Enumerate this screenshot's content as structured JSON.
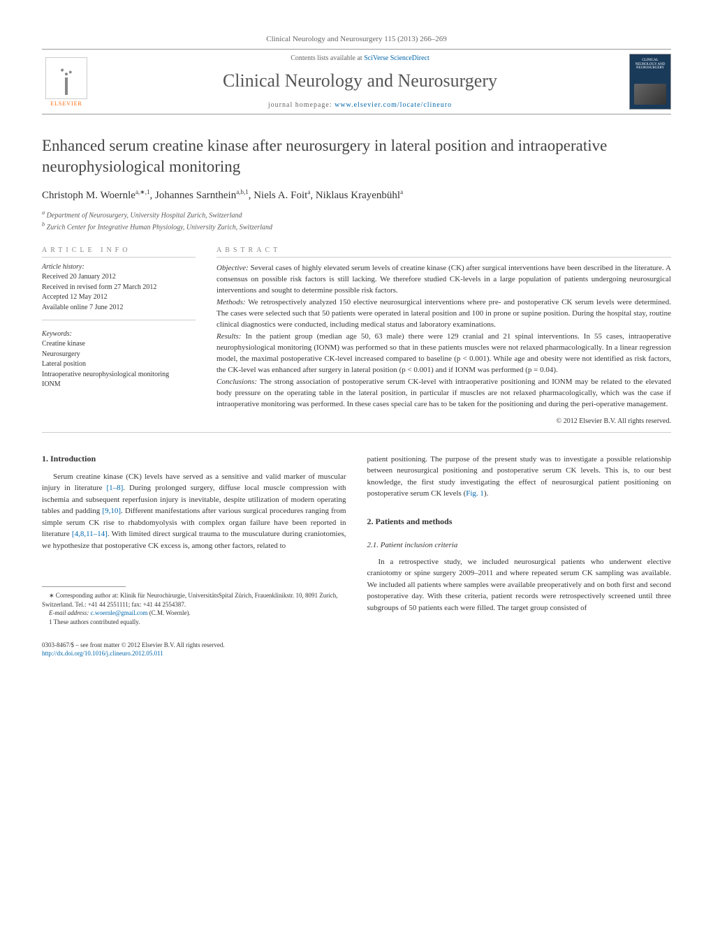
{
  "journal_header": "Clinical Neurology and Neurosurgery 115 (2013) 266–269",
  "contents_avail_prefix": "Contents lists available at ",
  "contents_avail_link": "SciVerse ScienceDirect",
  "journal_title": "Clinical Neurology and Neurosurgery",
  "homepage_prefix": "journal homepage: ",
  "homepage_link": "www.elsevier.com/locate/clineuro",
  "elsevier": "ELSEVIER",
  "cover_label": "CLINICAL NEUROLOGY AND NEUROSURGERY",
  "article_title": "Enhanced serum creatine kinase after neurosurgery in lateral position and intraoperative neurophysiological monitoring",
  "authors_html": "Christoph M. Woernle|a,∗,1|, Johannes Sarnthein|a,b,1|, Niels A. Foit|a|, Niklaus Krayenbühl|a|",
  "authors": [
    {
      "name": "Christoph M. Woernle",
      "sup": "a,∗,1"
    },
    {
      "name": "Johannes Sarnthein",
      "sup": "a,b,1"
    },
    {
      "name": "Niels A. Foit",
      "sup": "a"
    },
    {
      "name": "Niklaus Krayenbühl",
      "sup": "a"
    }
  ],
  "affiliations": [
    "a Department of Neurosurgery, University Hospital Zurich, Switzerland",
    "b Zurich Center for Integrative Human Physiology, University Zurich, Switzerland"
  ],
  "info_label": "ARTICLE INFO",
  "abstract_label": "ABSTRACT",
  "history_label": "Article history:",
  "history": [
    "Received 20 January 2012",
    "Received in revised form 27 March 2012",
    "Accepted 12 May 2012",
    "Available online 7 June 2012"
  ],
  "keywords_label": "Keywords:",
  "keywords": [
    "Creatine kinase",
    "Neurosurgery",
    "Lateral position",
    "Intraoperative neurophysiological monitoring",
    "IONM"
  ],
  "abstract": {
    "objective_label": "Objective:",
    "objective": " Several cases of highly elevated serum levels of creatine kinase (CK) after surgical interventions have been described in the literature. A consensus on possible risk factors is still lacking. We therefore studied CK-levels in a large population of patients undergoing neurosurgical interventions and sought to determine possible risk factors.",
    "methods_label": "Methods:",
    "methods": " We retrospectively analyzed 150 elective neurosurgical interventions where pre- and postoperative CK serum levels were determined. The cases were selected such that 50 patients were operated in lateral position and 100 in prone or supine position. During the hospital stay, routine clinical diagnostics were conducted, including medical status and laboratory examinations.",
    "results_label": "Results:",
    "results": " In the patient group (median age 50, 63 male) there were 129 cranial and 21 spinal interventions. In 55 cases, intraoperative neurophysiological monitoring (IONM) was performed so that in these patients muscles were not relaxed pharmacologically. In a linear regression model, the maximal postoperative CK-level increased compared to baseline (p < 0.001). While age and obesity were not identified as risk factors, the CK-level was enhanced after surgery in lateral position (p < 0.001) and if IONM was performed (p = 0.04).",
    "conclusions_label": "Conclusions:",
    "conclusions": " The strong association of postoperative serum CK-level with intraoperative positioning and IONM may be related to the elevated body pressure on the operating table in the lateral position, in particular if muscles are not relaxed pharmacologically, which was the case if intraoperative monitoring was performed. In these cases special care has to be taken for the positioning and during the peri-operative management."
  },
  "copyright": "© 2012 Elsevier B.V. All rights reserved.",
  "body": {
    "intro_heading": "1. Introduction",
    "intro_para_pre": "Serum creatine kinase (CK) levels have served as a sensitive and valid marker of muscular injury in literature ",
    "intro_ref1": "[1–8]",
    "intro_para_mid1": ". During prolonged surgery, diffuse local muscle compression with ischemia and subsequent reperfusion injury is inevitable, despite utilization of modern operating tables and padding ",
    "intro_ref2": "[9,10]",
    "intro_para_mid2": ". Different manifestations after various surgical procedures ranging from simple serum CK rise to rhabdomyolysis with complex organ failure have been reported in literature ",
    "intro_ref3": "[4,8,11–14]",
    "intro_para_end": ". With limited direct surgical trauma to the musculature during craniotomies, we hypothesize that postoperative CK excess is, among other factors, related to",
    "intro_col2_pre": "patient positioning. The purpose of the present study was to investigate a possible relationship between neurosurgical positioning and postoperative serum CK levels. This is, to our best knowledge, the first study investigating the effect of neurosurgical patient positioning on postoperative serum CK levels (",
    "intro_fig1": "Fig. 1",
    "intro_col2_post": ").",
    "methods_heading": "2. Patients and methods",
    "methods_sub": "2.1. Patient inclusion criteria",
    "methods_para": "In a retrospective study, we included neurosurgical patients who underwent elective craniotomy or spine surgery 2009–2011 and where repeated serum CK sampling was available. We included all patients where samples were available preoperatively and on both first and second postoperative day. With these criteria, patient records were retrospectively screened until three subgroups of 50 patients each were filled. The target group consisted of"
  },
  "footnotes": {
    "corr": "∗ Corresponding author at: Klinik für Neurochirurgie, UniversitätsSpital Zürich, Frauenklinikstr. 10, 8091 Zurich, Switzerland. Tel.: +41 44 2551111; fax: +41 44 2554387.",
    "email_label": "E-mail address: ",
    "email": "c.woernle@gmail.com",
    "email_suffix": " (C.M. Woernle).",
    "equal": "1 These authors contributed equally."
  },
  "bottom": {
    "issn": "0303-8467/$ – see front matter © 2012 Elsevier B.V. All rights reserved.",
    "doi_label": "http://dx.doi.org/",
    "doi": "10.1016/j.clineuro.2012.05.011"
  },
  "colors": {
    "link": "#0066aa",
    "text": "#333333",
    "muted": "#666666",
    "rule": "#cccccc",
    "elsevier_orange": "#ff6600",
    "cover_bg": "#1a3a5a"
  },
  "typography": {
    "body_pt": 11,
    "title_pt": 23,
    "journal_title_pt": 26,
    "author_pt": 15,
    "footnote_pt": 9
  }
}
